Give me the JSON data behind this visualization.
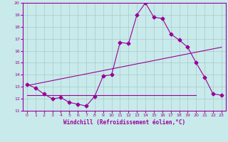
{
  "xlabel": "Windchill (Refroidissement éolien,°C)",
  "bg_color": "#c8eaea",
  "grid_color": "#aacaca",
  "line_color": "#990099",
  "xlim": [
    -0.5,
    23.5
  ],
  "ylim": [
    11,
    20
  ],
  "xticks": [
    0,
    1,
    2,
    3,
    4,
    5,
    6,
    7,
    8,
    9,
    10,
    11,
    12,
    13,
    14,
    15,
    16,
    17,
    18,
    19,
    20,
    21,
    22,
    23
  ],
  "yticks": [
    11,
    12,
    13,
    14,
    15,
    16,
    17,
    18,
    19,
    20
  ],
  "line1_x": [
    0,
    1,
    2,
    3,
    4,
    5,
    6,
    7,
    8,
    9,
    10,
    11,
    12,
    13,
    14,
    15,
    16,
    17,
    18,
    19,
    20,
    21,
    22,
    23
  ],
  "line1_y": [
    13.2,
    12.9,
    12.4,
    12.0,
    12.1,
    11.7,
    11.55,
    11.4,
    12.2,
    13.9,
    14.0,
    16.7,
    16.6,
    19.0,
    20.0,
    18.8,
    18.7,
    17.4,
    16.9,
    16.3,
    15.0,
    13.8,
    12.4,
    12.3
  ],
  "line2_x": [
    0,
    23
  ],
  "line2_y": [
    13.1,
    16.3
  ],
  "line3_x": [
    0,
    20
  ],
  "line3_y": [
    12.3,
    12.3
  ],
  "marker": "D",
  "markersize": 2.5,
  "linewidth": 0.8,
  "tick_fontsize": 4.5,
  "label_fontsize": 5.5
}
